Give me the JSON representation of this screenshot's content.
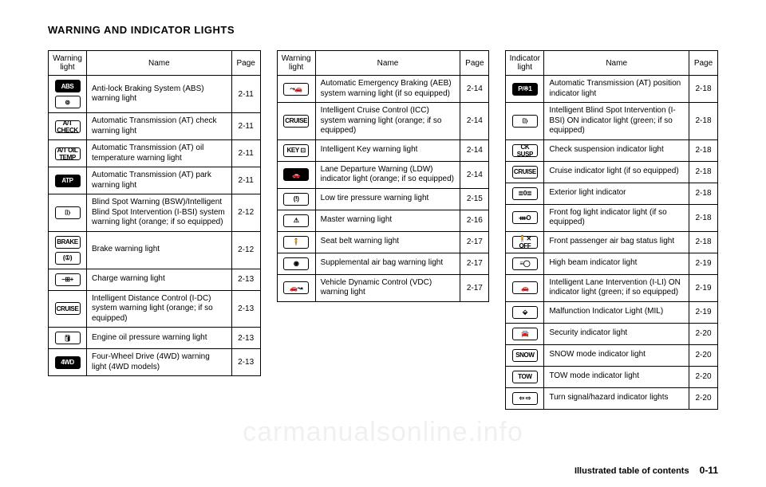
{
  "title": "WARNING AND INDICATOR LIGHTS",
  "footer_label": "Illustrated table of contents",
  "footer_page": "0-11",
  "watermark": "carmanualsonline.info",
  "tables": [
    {
      "head_icon": "Warning light",
      "head_name": "Name",
      "head_page": "Page",
      "rows": [
        {
          "icons": [
            {
              "t": "ABS",
              "filled": true
            },
            {
              "t": "⊚"
            }
          ],
          "name": "Anti-lock Braking System (ABS) warning light",
          "page": "2-11"
        },
        {
          "icons": [
            {
              "t": "A/T CHECK"
            }
          ],
          "name": "Automatic Transmission (AT) check warning light",
          "page": "2-11"
        },
        {
          "icons": [
            {
              "t": "A/T OIL TEMP"
            }
          ],
          "name": "Automatic Transmission (AT) oil temperature warning light",
          "page": "2-11"
        },
        {
          "icons": [
            {
              "t": "ATP",
              "filled": true
            }
          ],
          "name": "Automatic Transmission (AT) park warning light",
          "page": "2-11"
        },
        {
          "icons": [
            {
              "t": "⌷⟩"
            }
          ],
          "name": "Blind Spot Warning (BSW)/Intelligent Blind Spot Intervention (I-BSI) system warning light (orange; if so equipped)",
          "page": "2-12"
        },
        {
          "icons": [
            {
              "t": "BRAKE"
            },
            {
              "t": "(①)"
            }
          ],
          "name": "Brake warning light",
          "page": "2-12"
        },
        {
          "icons": [
            {
              "t": "−⊞+"
            }
          ],
          "name": "Charge warning light",
          "page": "2-13"
        },
        {
          "icons": [
            {
              "t": "CRUISE"
            }
          ],
          "name": "Intelligent Distance Control (I-DC) system warning light (orange; if so equipped)",
          "page": "2-13"
        },
        {
          "icons": [
            {
              "t": "🛢"
            }
          ],
          "name": "Engine oil pressure warning light",
          "page": "2-13"
        },
        {
          "icons": [
            {
              "t": "4WD",
              "filled": true
            }
          ],
          "name": "Four-Wheel Drive (4WD) warning light (4WD models)",
          "page": "2-13"
        }
      ]
    },
    {
      "head_icon": "Warning light",
      "head_name": "Name",
      "head_page": "Page",
      "rows": [
        {
          "icons": [
            {
              "t": "⤳🚗"
            }
          ],
          "name": "Automatic Emergency Braking (AEB) system warning light (if so equipped)",
          "page": "2-14"
        },
        {
          "icons": [
            {
              "t": "CRUISE"
            }
          ],
          "name": "Intelligent Cruise Control (ICC) system warning light (orange; if so equipped)",
          "page": "2-14"
        },
        {
          "icons": [
            {
              "t": "KEY ⊡"
            }
          ],
          "name": "Intelligent Key warning light",
          "page": "2-14"
        },
        {
          "icons": [
            {
              "t": "🚗",
              "filled": true
            }
          ],
          "name": "Lane Departure Warning (LDW) indicator light (orange; if so equipped)",
          "page": "2-14"
        },
        {
          "icons": [
            {
              "t": "(!)"
            }
          ],
          "name": "Low tire pressure warning light",
          "page": "2-15"
        },
        {
          "icons": [
            {
              "t": "⚠"
            }
          ],
          "name": "Master warning light",
          "page": "2-16"
        },
        {
          "icons": [
            {
              "t": "🧍"
            }
          ],
          "name": "Seat belt warning light",
          "page": "2-17"
        },
        {
          "icons": [
            {
              "t": "◉"
            }
          ],
          "name": "Supplemental air bag warning light",
          "page": "2-17"
        },
        {
          "icons": [
            {
              "t": "🚗↝"
            }
          ],
          "name": "Vehicle Dynamic Control (VDC) warning light",
          "page": "2-17"
        }
      ]
    },
    {
      "head_icon": "Indicator light",
      "head_name": "Name",
      "head_page": "Page",
      "rows": [
        {
          "icons": [
            {
              "t": "P/※1",
              "filled": true
            }
          ],
          "name": "Automatic Transmission (AT) position indicator light",
          "page": "2-18"
        },
        {
          "icons": [
            {
              "t": "⌷⟩"
            }
          ],
          "name": "Intelligent Blind Spot Intervention (I-BSI) ON indicator light (green; if so equipped)",
          "page": "2-18"
        },
        {
          "icons": [
            {
              "t": "CK SUSP"
            }
          ],
          "name": "Check suspension indicator light",
          "page": "2-18"
        },
        {
          "icons": [
            {
              "t": "CRUISE"
            }
          ],
          "name": "Cruise indicator light (if so equipped)",
          "page": "2-18"
        },
        {
          "icons": [
            {
              "t": "≣0≣"
            }
          ],
          "name": "Exterior light indicator",
          "page": "2-18"
        },
        {
          "icons": [
            {
              "t": "ᚓO"
            }
          ],
          "name": "Front fog light indicator light (if so equipped)",
          "page": "2-18"
        },
        {
          "icons": [
            {
              "t": "🧍✕ OFF"
            }
          ],
          "name": "Front passenger air bag status light",
          "page": "2-18"
        },
        {
          "icons": [
            {
              "t": "≡◯"
            }
          ],
          "name": "High beam indicator light",
          "page": "2-19"
        },
        {
          "icons": [
            {
              "t": "🚗"
            }
          ],
          "name": "Intelligent Lane Intervention (I-LI) ON indicator light (green; if so equipped)",
          "page": "2-19"
        },
        {
          "icons": [
            {
              "t": "⬙"
            }
          ],
          "name": "Malfunction Indicator Light (MIL)",
          "page": "2-19"
        },
        {
          "icons": [
            {
              "t": "🚘"
            }
          ],
          "name": "Security indicator light",
          "page": "2-20"
        },
        {
          "icons": [
            {
              "t": "SNOW"
            }
          ],
          "name": "SNOW mode indicator light",
          "page": "2-20"
        },
        {
          "icons": [
            {
              "t": "TOW"
            }
          ],
          "name": "TOW mode indicator light",
          "page": "2-20"
        },
        {
          "icons": [
            {
              "t": "⇦ ⇨"
            }
          ],
          "name": "Turn signal/hazard indicator lights",
          "page": "2-20"
        }
      ]
    }
  ]
}
